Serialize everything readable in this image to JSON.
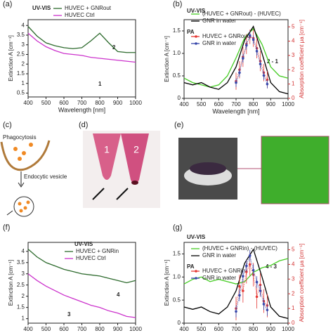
{
  "chart_data": [
    {
      "type": "line",
      "panel_label": "(a)",
      "xlabel": "Wavelength [nm]",
      "ylabel": "Extinction A [cm⁻¹]",
      "x": [
        400,
        450,
        500,
        550,
        600,
        650,
        700,
        750,
        800,
        850,
        900,
        950,
        1000
      ],
      "xlim": [
        400,
        1000
      ],
      "xticks": [
        400,
        500,
        600,
        700,
        800,
        900,
        1000
      ],
      "ylim": [
        0.3,
        4.3
      ],
      "yticks": [
        0.5,
        1,
        1.5,
        2,
        2.5,
        3,
        3.5,
        4
      ],
      "annotations": [
        "UV-VIS",
        "2",
        "1"
      ],
      "series": [
        {
          "name": "HUVEC + GNRout",
          "color": "#2e6b2e",
          "values": [
            3.95,
            3.45,
            3.1,
            2.95,
            2.85,
            2.8,
            2.85,
            3.2,
            3.6,
            3.1,
            2.65,
            2.6,
            2.6
          ]
        },
        {
          "name": "HUVEC Ctrl",
          "color": "#cc33cc",
          "values": [
            3.6,
            3.2,
            2.9,
            2.7,
            2.55,
            2.5,
            2.45,
            2.35,
            2.3,
            2.25,
            2.2,
            2.15,
            2.1
          ]
        }
      ]
    },
    {
      "type": "line",
      "panel_label": "(b)",
      "xlabel": "Wavelength [nm]",
      "ylabel": "Extinction A [cm⁻¹]",
      "y2label": "Absorption coefficient μa [cm⁻¹]",
      "x": [
        400,
        450,
        500,
        550,
        600,
        650,
        700,
        750,
        800,
        850,
        900,
        950,
        1000
      ],
      "xlim": [
        400,
        1000
      ],
      "xticks": [
        400,
        500,
        600,
        700,
        800,
        900,
        1000
      ],
      "ylim": [
        0,
        1.75
      ],
      "yticks": [
        0,
        0.5,
        {
          "value": 1,
          "label": "1.0"
        },
        1.5
      ],
      "y2lim": [
        0,
        5.5
      ],
      "y2ticks": [
        0,
        1,
        2,
        3,
        4,
        5
      ],
      "annotations": [
        "UV-VIS",
        "PA",
        "2 - 1"
      ],
      "series": [
        {
          "name": "(HUVEC + GNRout) - (HUVEC)",
          "color": "#44cc22",
          "values": [
            0.45,
            0.35,
            0.3,
            0.25,
            0.3,
            0.5,
            0.9,
            1.35,
            1.55,
            1.2,
            0.7,
            0.5,
            0.45
          ]
        },
        {
          "name": "GNR in water",
          "color": "#000000",
          "values": [
            0.35,
            0.3,
            0.35,
            0.25,
            0.2,
            0.35,
            0.7,
            1.3,
            1.6,
            1.0,
            0.35,
            0.15,
            0.1
          ]
        },
        {
          "name": "HUVEC + GNRout",
          "color": "#e53935",
          "mode": "markers",
          "axis": "y2",
          "x": [
            700,
            720,
            740,
            760,
            780,
            800,
            820,
            840,
            860,
            880
          ],
          "values": [
            1.2,
            2.0,
            2.9,
            3.8,
            4.3,
            4.2,
            3.5,
            2.6,
            1.8,
            1.3
          ],
          "errors": [
            0.6,
            0.6,
            0.7,
            0.7,
            0.5,
            0.6,
            0.7,
            0.7,
            0.6,
            0.6
          ]
        },
        {
          "name": "GNR in water",
          "color": "#3949ab",
          "mode": "markers",
          "axis": "y2",
          "x": [
            700,
            720,
            740,
            760,
            780,
            800,
            820,
            840,
            860,
            880
          ],
          "values": [
            1.1,
            1.8,
            2.8,
            3.7,
            4.4,
            4.1,
            3.3,
            2.4,
            1.6,
            1.0
          ],
          "errors": [
            0.3,
            0.3,
            0.3,
            0.3,
            0.3,
            0.3,
            0.3,
            0.3,
            0.3,
            0.3
          ]
        }
      ]
    },
    {
      "type": "line",
      "panel_label": "(f)",
      "xlabel": "Wavelength [nm]",
      "ylabel": "Extinction A [cm⁻¹]",
      "x": [
        400,
        450,
        500,
        550,
        600,
        650,
        700,
        750,
        800,
        850,
        900,
        950,
        1000
      ],
      "xlim": [
        400,
        1000
      ],
      "xticks": [
        400,
        500,
        600,
        700,
        800,
        900,
        1000
      ],
      "ylim": [
        0.8,
        4.4
      ],
      "yticks": [
        1,
        1.5,
        2,
        2.5,
        3,
        3.5,
        4
      ],
      "annotations": [
        "UV-VIS",
        "4",
        "3"
      ],
      "series": [
        {
          "name": "HUVEC + GNRin",
          "color": "#2e6b2e",
          "values": [
            4.1,
            3.75,
            3.5,
            3.35,
            3.2,
            3.1,
            3.0,
            2.95,
            2.9,
            2.8,
            2.7,
            2.6,
            2.7
          ]
        },
        {
          "name": "HUVEC Ctrl",
          "color": "#cc33cc",
          "values": [
            3.0,
            2.7,
            2.45,
            2.25,
            2.05,
            1.9,
            1.75,
            1.6,
            1.5,
            1.35,
            1.25,
            1.1,
            1.05
          ]
        }
      ]
    },
    {
      "type": "line",
      "panel_label": "(g)",
      "xlabel": "Wavelength [nm]",
      "ylabel": "Extinction A [cm⁻¹]",
      "y2label": "Absorption coefficient μa [cm⁻¹]",
      "x": [
        400,
        450,
        500,
        550,
        600,
        650,
        700,
        750,
        800,
        850,
        900,
        950,
        1000
      ],
      "xlim": [
        400,
        1000
      ],
      "xticks": [
        400,
        500,
        600,
        700,
        800,
        900,
        1000
      ],
      "ylim": [
        0,
        1.75
      ],
      "yticks": [
        0,
        0.5,
        {
          "value": 1,
          "label": "1.0"
        },
        1.5
      ],
      "y2lim": [
        0,
        5.5
      ],
      "y2ticks": [
        0,
        1,
        2,
        3,
        4,
        5
      ],
      "annotations": [
        "UV-VIS",
        "PA",
        "4 - 3"
      ],
      "series": [
        {
          "name": "(HUVEC + GNRin) - (HUVEC)",
          "color": "#44cc22",
          "values": [
            0.85,
            0.95,
            1.0,
            0.9,
            0.95,
            0.9,
            0.85,
            0.9,
            1.1,
            1.2,
            1.25,
            1.35,
            1.4
          ]
        },
        {
          "name": "GNR in water",
          "color": "#000000",
          "values": [
            0.35,
            0.3,
            0.35,
            0.25,
            0.2,
            0.35,
            0.7,
            1.3,
            1.6,
            1.0,
            0.35,
            0.15,
            0.1
          ]
        },
        {
          "name": "HUVEC + GNRin",
          "color": "#e53935",
          "mode": "markers",
          "axis": "y2",
          "x": [
            700,
            720,
            740,
            760,
            780,
            800,
            820,
            840,
            860,
            880
          ],
          "values": [
            1.0,
            2.5,
            2.2,
            3.5,
            4.0,
            3.3,
            1.8,
            2.6,
            1.5,
            1.2
          ],
          "errors": [
            0.8,
            0.8,
            0.8,
            0.8,
            0.8,
            0.8,
            0.8,
            0.8,
            0.8,
            0.8
          ]
        },
        {
          "name": "GNR in water",
          "color": "#3949ab",
          "mode": "markers",
          "axis": "y2",
          "x": [
            700,
            720,
            740,
            760,
            780,
            800,
            820,
            840,
            860,
            880
          ],
          "values": [
            0.8,
            1.9,
            3.2,
            3.9,
            4.6,
            3.6,
            2.8,
            2.2,
            1.3,
            0.9
          ],
          "errors": [
            0.4,
            0.4,
            0.4,
            0.4,
            0.4,
            0.4,
            0.4,
            0.4,
            0.4,
            0.4
          ]
        }
      ]
    }
  ],
  "panels": {
    "c": {
      "label": "(c)",
      "phagocytosis": "Phagocytosis",
      "vesicle": "Endocytic vesicle"
    },
    "d": {
      "label": "(d)",
      "tube1": "1",
      "tube2": "2"
    },
    "e": {
      "label": "(e)"
    }
  }
}
